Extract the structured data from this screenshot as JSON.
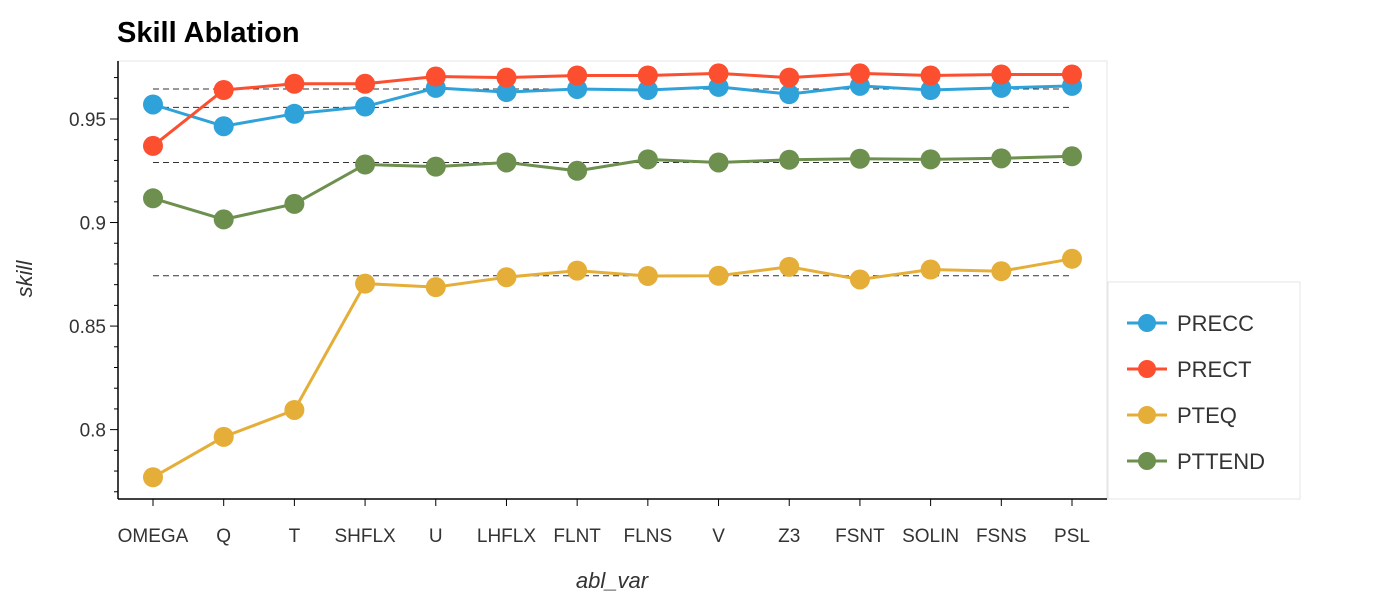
{
  "chart_data": {
    "type": "line",
    "title": "Skill Ablation",
    "xlabel": "abl_var",
    "ylabel": "skill",
    "categories": [
      "OMEGA",
      "Q",
      "T",
      "SHFLX",
      "U",
      "LHFLX",
      "FLNT",
      "FLNS",
      "V",
      "Z3",
      "FSNT",
      "SOLIN",
      "FSNS",
      "PSL"
    ],
    "ylim": [
      0.7665,
      0.978
    ],
    "yticks": [
      0.8,
      0.85,
      0.9,
      0.95
    ],
    "ytick_labels": [
      "0.8",
      "0.85",
      "0.9",
      "0.95"
    ],
    "series": [
      {
        "name": "PRECC",
        "color": "#30a2da",
        "values": [
          0.957,
          0.9465,
          0.9525,
          0.956,
          0.965,
          0.963,
          0.9645,
          0.964,
          0.9655,
          0.962,
          0.966,
          0.964,
          0.965,
          0.966
        ]
      },
      {
        "name": "PRECT",
        "color": "#fc4f30",
        "values": [
          0.937,
          0.964,
          0.967,
          0.967,
          0.9705,
          0.97,
          0.971,
          0.971,
          0.972,
          0.97,
          0.972,
          0.971,
          0.9715,
          0.9715
        ]
      },
      {
        "name": "PTEQ",
        "color": "#e5ae38",
        "values": [
          0.777,
          0.7965,
          0.8095,
          0.8705,
          0.8688,
          0.8736,
          0.8768,
          0.8742,
          0.8743,
          0.8786,
          0.8725,
          0.8773,
          0.8765,
          0.8825
        ]
      },
      {
        "name": "PTTEND",
        "color": "#6d904f",
        "values": [
          0.9117,
          0.9015,
          0.909,
          0.928,
          0.927,
          0.929,
          0.925,
          0.9305,
          0.929,
          0.9303,
          0.9308,
          0.9305,
          0.931,
          0.932
        ]
      }
    ],
    "reference_lines": [
      0.9645,
      0.9556,
      0.929,
      0.8743
    ],
    "grid": false,
    "legend_position": "right"
  }
}
